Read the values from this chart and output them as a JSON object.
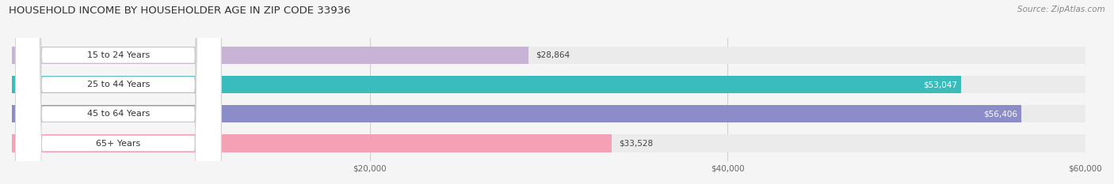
{
  "title": "HOUSEHOLD INCOME BY HOUSEHOLDER AGE IN ZIP CODE 33936",
  "source": "Source: ZipAtlas.com",
  "categories": [
    "15 to 24 Years",
    "25 to 44 Years",
    "45 to 64 Years",
    "65+ Years"
  ],
  "values": [
    28864,
    53047,
    56406,
    33528
  ],
  "bar_colors": [
    "#c9b3d4",
    "#3bbcbc",
    "#8b8cc8",
    "#f4a0b5"
  ],
  "label_colors": [
    "#444444",
    "#ffffff",
    "#ffffff",
    "#444444"
  ],
  "bg_bar_color": "#ebebeb",
  "label_bg_color": "#ffffff",
  "xlim": [
    0,
    60000
  ],
  "xticks": [
    20000,
    40000,
    60000
  ],
  "xtick_labels": [
    "$20,000",
    "$40,000",
    "$60,000"
  ],
  "value_labels": [
    "$28,864",
    "$53,047",
    "$56,406",
    "$33,528"
  ],
  "figsize": [
    14.06,
    2.33
  ],
  "dpi": 100
}
